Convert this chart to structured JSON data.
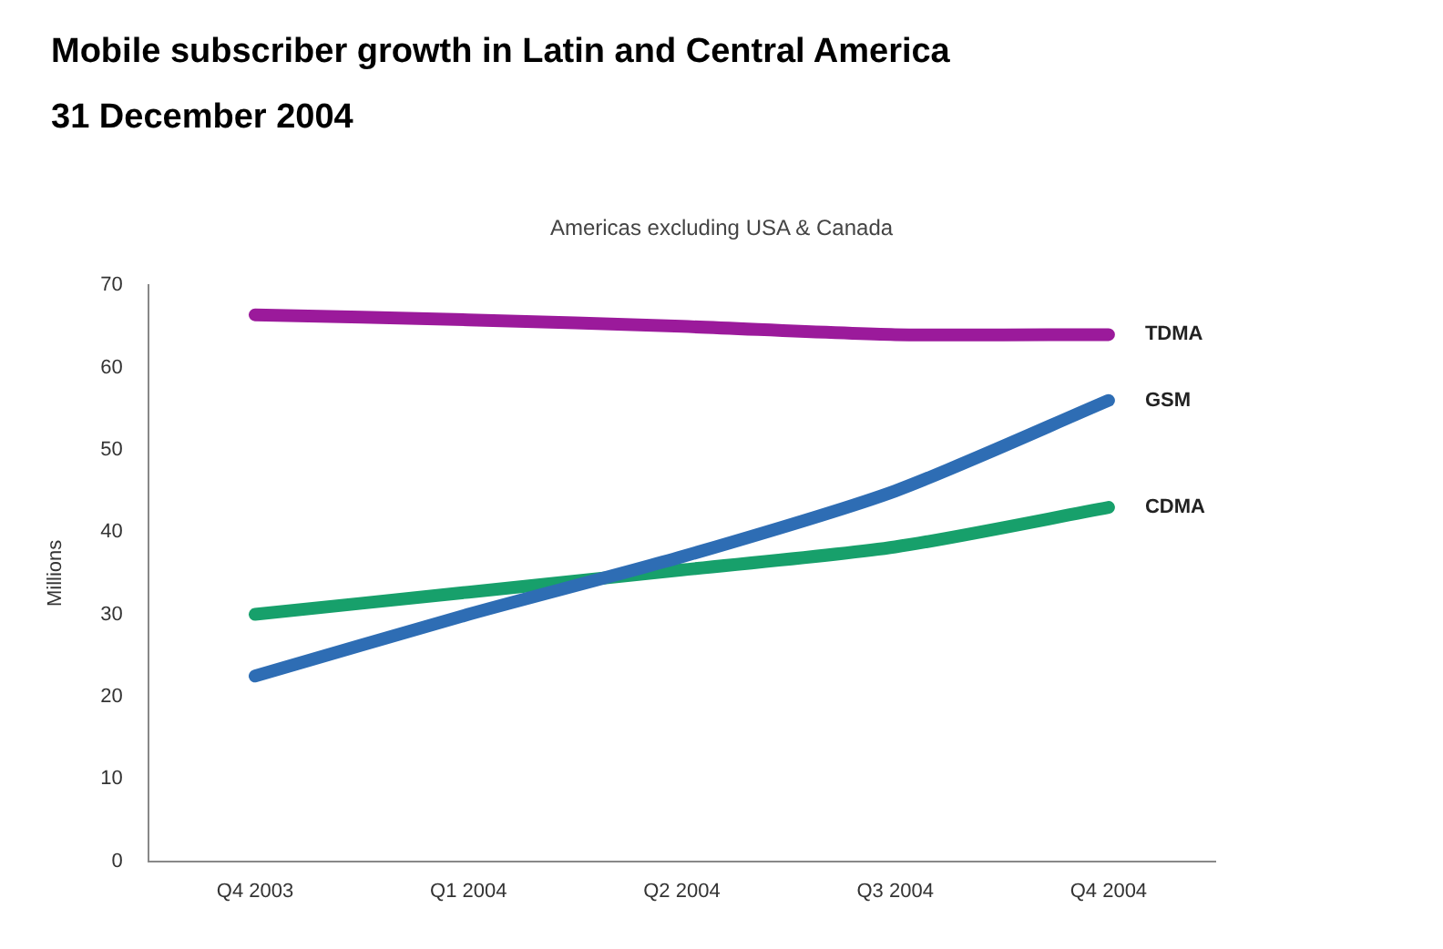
{
  "chart_data": {
    "type": "line",
    "title": "Mobile subscriber growth in Latin and Central America",
    "subtitle": "31 December 2004",
    "annotations": [
      "Americas excluding USA & Canada"
    ],
    "ylabel": "Millions",
    "categories": [
      "Q4 2003",
      "Q1 2004",
      "Q2 2004",
      "Q3 2004",
      "Q4 2004"
    ],
    "series": [
      {
        "name": "TDMA",
        "color": "#9b1a9b",
        "values": [
          66.4,
          65.8,
          65,
          64,
          64
        ]
      },
      {
        "name": "GSM",
        "color": "#2e6db4",
        "values": [
          22.5,
          30,
          37,
          45,
          56
        ]
      },
      {
        "name": "CDMA",
        "color": "#17a06b",
        "values": [
          30,
          32.7,
          35.4,
          38.2,
          43
        ]
      }
    ],
    "ylim": [
      0,
      70
    ],
    "yticks": [
      0,
      10,
      20,
      30,
      40,
      50,
      60,
      70
    ],
    "grid": false,
    "legend": false,
    "marker": "none",
    "line_style": "solid"
  }
}
